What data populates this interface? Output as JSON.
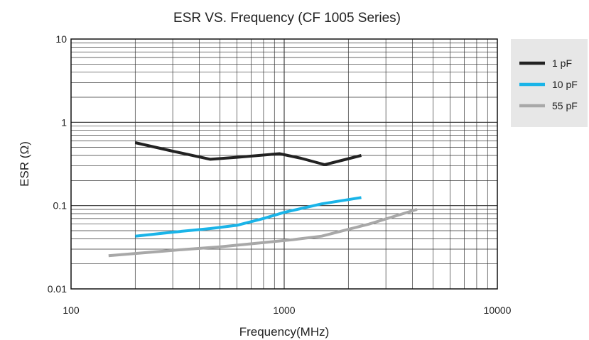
{
  "chart_data": {
    "type": "line",
    "title": "ESR VS. Frequency (CF 1005 Series)",
    "xlabel": "Frequency(MHz)",
    "ylabel": "ESR (Ω)",
    "x_scale": "log",
    "y_scale": "log",
    "xlim": [
      100,
      10000
    ],
    "ylim": [
      0.01,
      10
    ],
    "x_ticks": [
      100,
      1000,
      10000
    ],
    "x_tick_labels": [
      "100",
      "1000",
      "10000"
    ],
    "y_ticks": [
      0.01,
      0.1,
      1,
      10
    ],
    "y_tick_labels": [
      "0.01",
      "0.1",
      "1",
      "10"
    ],
    "grid": true,
    "legend_position": "right",
    "series": [
      {
        "name": "1 pF",
        "color": "#222222",
        "x": [
          200,
          300,
          450,
          600,
          950,
          1200,
          1550,
          2300
        ],
        "y": [
          0.57,
          0.45,
          0.36,
          0.38,
          0.42,
          0.37,
          0.31,
          0.4
        ]
      },
      {
        "name": "10 pF",
        "color": "#1ab4e8",
        "x": [
          200,
          300,
          450,
          600,
          800,
          1000,
          1500,
          2300
        ],
        "y": [
          0.043,
          0.048,
          0.053,
          0.058,
          0.07,
          0.083,
          0.105,
          0.125
        ]
      },
      {
        "name": "55 pF",
        "color": "#a8a8a8",
        "x": [
          150,
          300,
          500,
          800,
          1100,
          1500,
          2500,
          4200
        ],
        "y": [
          0.025,
          0.029,
          0.032,
          0.036,
          0.039,
          0.043,
          0.06,
          0.09
        ]
      }
    ]
  }
}
